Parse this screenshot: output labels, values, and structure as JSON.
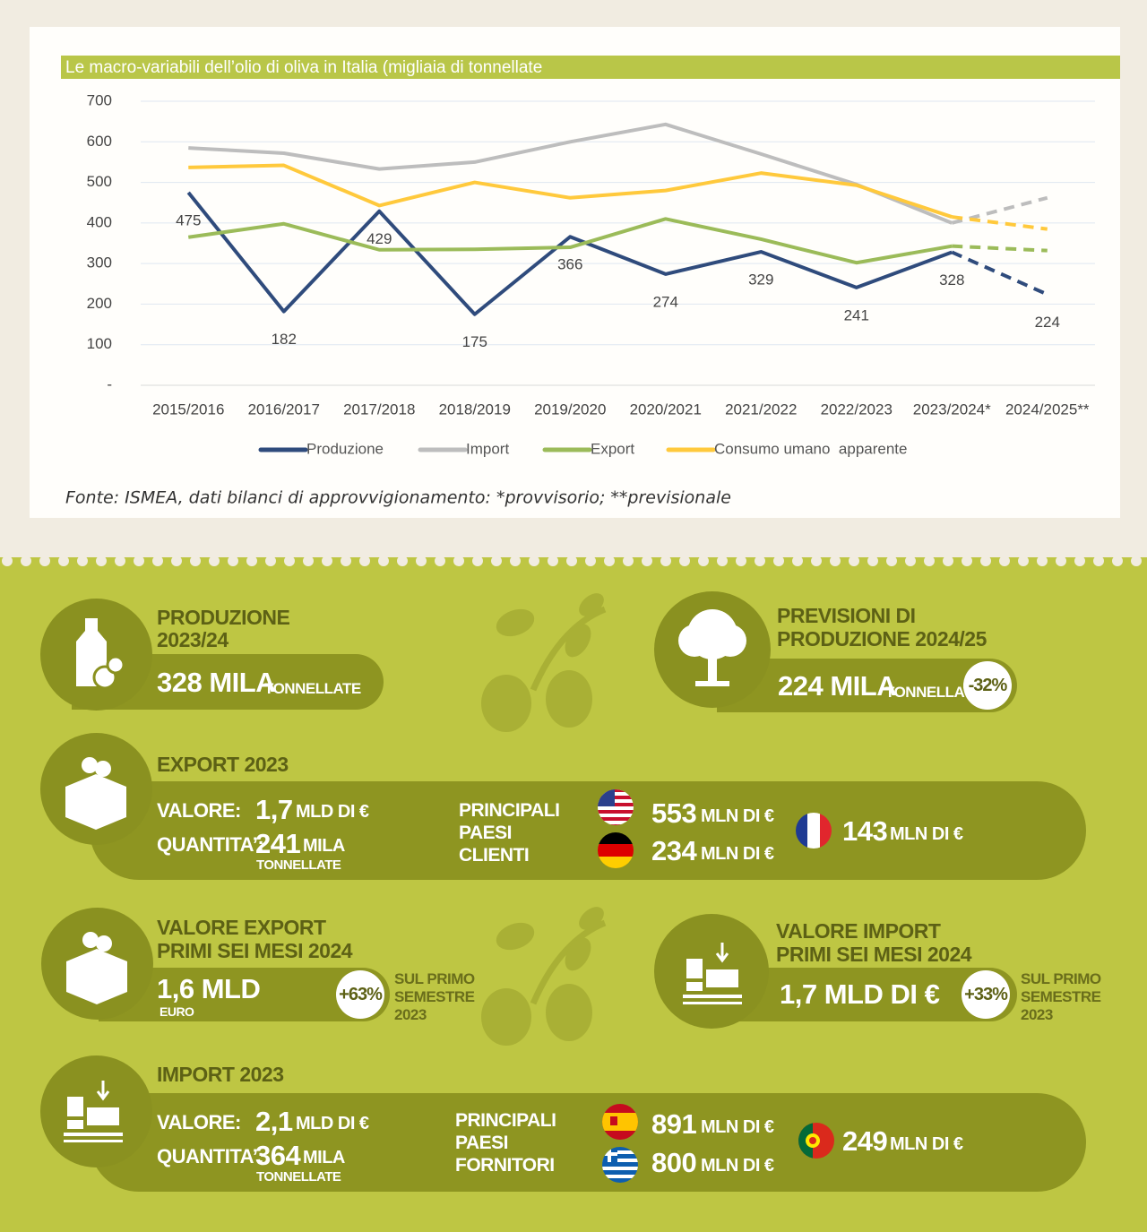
{
  "chart_data": {
    "type": "line",
    "title": "Le macro-variabili dell’olio di oliva in Italia (migliaia di tonnellate",
    "categories": [
      "2015/2016",
      "2016/2017",
      "2017/2018",
      "2018/2019",
      "2019/2020",
      "2020/2021",
      "2021/2022",
      "2022/2023",
      "2023/2024*",
      "2024/2025**"
    ],
    "series": [
      {
        "name": "Produzione",
        "color": "#2f4b7c",
        "values": [
          475,
          182,
          429,
          175,
          366,
          274,
          329,
          241,
          328,
          224
        ],
        "data_labels": true
      },
      {
        "name": "Import",
        "color": "#bdbdbd",
        "values": [
          585,
          572,
          533,
          550,
          600,
          643,
          570,
          495,
          400,
          462
        ]
      },
      {
        "name": "Export",
        "color": "#9bbb59",
        "values": [
          365,
          398,
          334,
          335,
          340,
          410,
          360,
          302,
          343,
          332
        ]
      },
      {
        "name": "Consumo umano  apparente",
        "color": "#ffc93c",
        "values": [
          537,
          542,
          443,
          500,
          462,
          480,
          523,
          493,
          415,
          385
        ]
      }
    ],
    "last_segment_dashed": true,
    "ylim": [
      0,
      700
    ],
    "yticks": [
      {
        "value": 0,
        "label": "-"
      },
      100,
      200,
      300,
      400,
      500,
      600,
      700
    ],
    "grid": true,
    "legend": "bottom",
    "source": "Fonte: ISMEA, dati bilanci di approvvigionamento: *provvisorio; **previsionale"
  },
  "infographic": {
    "produzione": {
      "title": [
        "PRODUZIONE",
        "2023/24"
      ],
      "value": "328 MILA",
      "unit": "TONNELLATE"
    },
    "previsioni": {
      "title": [
        "PREVISIONI DI",
        "PRODUZIONE 2024/25"
      ],
      "value": "224 MILA",
      "unit": "TONNELLATE",
      "change": "-32%"
    },
    "export_2023": {
      "title": "EXPORT 2023",
      "valore_label": "VALORE:",
      "valore": "1,7",
      "valore_unit": "MLD DI €",
      "quantita_label": "QUANTITA’:",
      "quantita": "241",
      "quantita_unit": "MILA",
      "quantita_unit2": "TONNELLATE",
      "countries_title": [
        "PRINCIPALI",
        "PAESI",
        "CLIENTI"
      ],
      "countries": [
        {
          "value": "553",
          "unit": "MLN DI €"
        },
        {
          "value": "234",
          "unit": "MLN DI €"
        },
        {
          "value": "143",
          "unit": "MLN DI €"
        }
      ]
    },
    "valore_export": {
      "title": [
        "VALORE EXPORT",
        "PRIMI SEI MESI 2024"
      ],
      "value": "1,6 MLD",
      "unit": "EURO",
      "change": "+63%",
      "note": [
        "SUL PRIMO",
        "SEMESTRE",
        "2023"
      ]
    },
    "valore_import": {
      "title": [
        "VALORE IMPORT",
        "PRIMI SEI MESI 2024"
      ],
      "value": "1,7 MLD DI €",
      "change": "+33%",
      "note": [
        "SUL PRIMO",
        "SEMESTRE",
        "2023"
      ]
    },
    "import_2023": {
      "title": "IMPORT 2023",
      "valore_label": "VALORE:",
      "valore": "2,1",
      "valore_unit": "MLD DI €",
      "quantita_label": "QUANTITA’:",
      "quantita": "364",
      "quantita_unit": "MILA",
      "quantita_unit2": "TONNELLATE",
      "countries_title": [
        "PRINCIPALI",
        "PAESI",
        "FORNITORI"
      ],
      "countries": [
        {
          "value": "891",
          "unit": "MLN DI €"
        },
        {
          "value": "800",
          "unit": "MLN DI €"
        },
        {
          "value": "249",
          "unit": "MLN DI €"
        }
      ]
    }
  }
}
